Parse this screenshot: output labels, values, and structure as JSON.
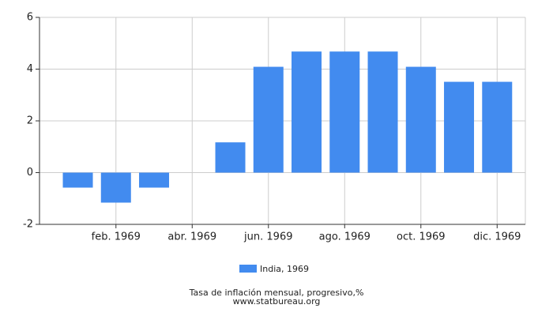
{
  "chart_data": {
    "type": "bar",
    "title": "Tasa de inflación mensual, progresivo,%",
    "subtitle": "www.statbureau.org",
    "categories": [
      null,
      "feb. 1969",
      null,
      "abr. 1969",
      null,
      "jun. 1969",
      null,
      "ago. 1969",
      null,
      "oct. 1969",
      null,
      "dic. 1969"
    ],
    "series": [
      {
        "name": "India, 1969",
        "color": "#428bef",
        "values": [
          -0.58,
          -1.16,
          -0.58,
          0,
          1.17,
          4.09,
          4.68,
          4.68,
          4.68,
          4.09,
          3.51,
          3.51
        ]
      }
    ],
    "ylim": [
      -2,
      6
    ],
    "yticks": [
      -2,
      0,
      2,
      4,
      6
    ],
    "grid": true,
    "legend": "bottom"
  }
}
